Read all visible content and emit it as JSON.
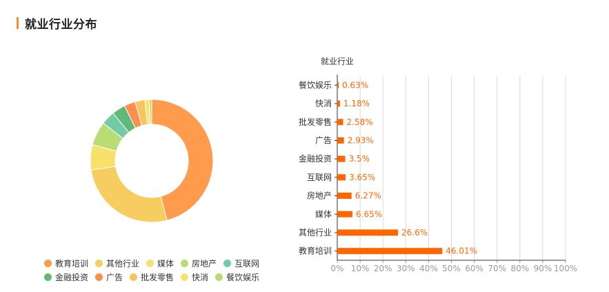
{
  "header": {
    "title": "就业行业分布",
    "accent_color": "#f28a2f"
  },
  "chart_data": [
    {
      "type": "pie",
      "style": "donut",
      "legend_position": "bottom",
      "categories": [
        "教育培训",
        "其他行业",
        "媒体",
        "房地产",
        "互联网",
        "金融投资",
        "广告",
        "批发零售",
        "快消",
        "餐饮娱乐"
      ],
      "values": [
        46.01,
        26.6,
        6.65,
        6.27,
        3.65,
        3.5,
        2.93,
        2.58,
        1.18,
        0.63
      ],
      "colors": [
        "#ff9b4d",
        "#f7cd62",
        "#f6e26b",
        "#b9dd73",
        "#73cba5",
        "#5fb978",
        "#fb8f4e",
        "#f8c45f",
        "#f7e36c",
        "#bad974"
      ]
    },
    {
      "type": "bar",
      "orientation": "horizontal",
      "title": "就业行业",
      "categories": [
        "餐饮娱乐",
        "快消",
        "批发零售",
        "广告",
        "金融投资",
        "互联网",
        "房地产",
        "媒体",
        "其他行业",
        "教育培训"
      ],
      "values": [
        0.63,
        1.18,
        2.58,
        2.93,
        3.5,
        3.65,
        6.27,
        6.65,
        26.6,
        46.01
      ],
      "value_labels": [
        "0.63%",
        "1.18%",
        "2.58%",
        "2.93%",
        "3.5%",
        "3.65%",
        "6.27%",
        "6.65%",
        "26.6%",
        "46.01%"
      ],
      "x_ticks": [
        "0%",
        "10%",
        "20%",
        "30%",
        "40%",
        "50%",
        "60%",
        "70%",
        "80%",
        "90%",
        "100%"
      ],
      "xlim": [
        0,
        100
      ],
      "grid": true,
      "bar_color": "#ff6600",
      "label_color": "#ff6600"
    }
  ]
}
